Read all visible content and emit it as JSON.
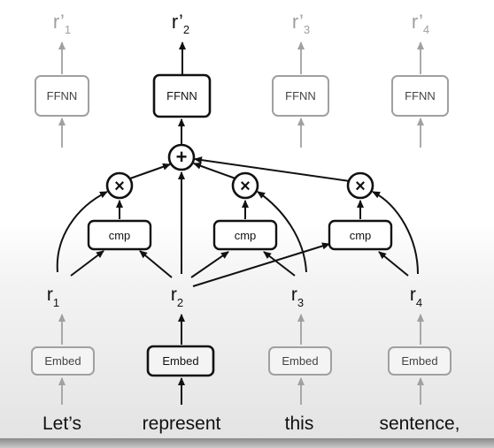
{
  "outputs": {
    "r1": {
      "base": "r’",
      "sub": "1"
    },
    "r2": {
      "base": "r’",
      "sub": "2"
    },
    "r3": {
      "base": "r’",
      "sub": "3"
    },
    "r4": {
      "base": "r’",
      "sub": "4"
    }
  },
  "ffnn_label": "FFNN",
  "plus_symbol": "+",
  "times_symbol": "×",
  "cmp_label": "cmp",
  "reps": {
    "r1": {
      "base": "r",
      "sub": "1"
    },
    "r2": {
      "base": "r",
      "sub": "2"
    },
    "r3": {
      "base": "r",
      "sub": "3"
    },
    "r4": {
      "base": "r",
      "sub": "4"
    }
  },
  "embed_label": "Embed",
  "words": [
    "Let’s",
    "represent",
    "this",
    "sentence,"
  ],
  "colors": {
    "active": "#111111",
    "faded": "#a0a0a0"
  }
}
